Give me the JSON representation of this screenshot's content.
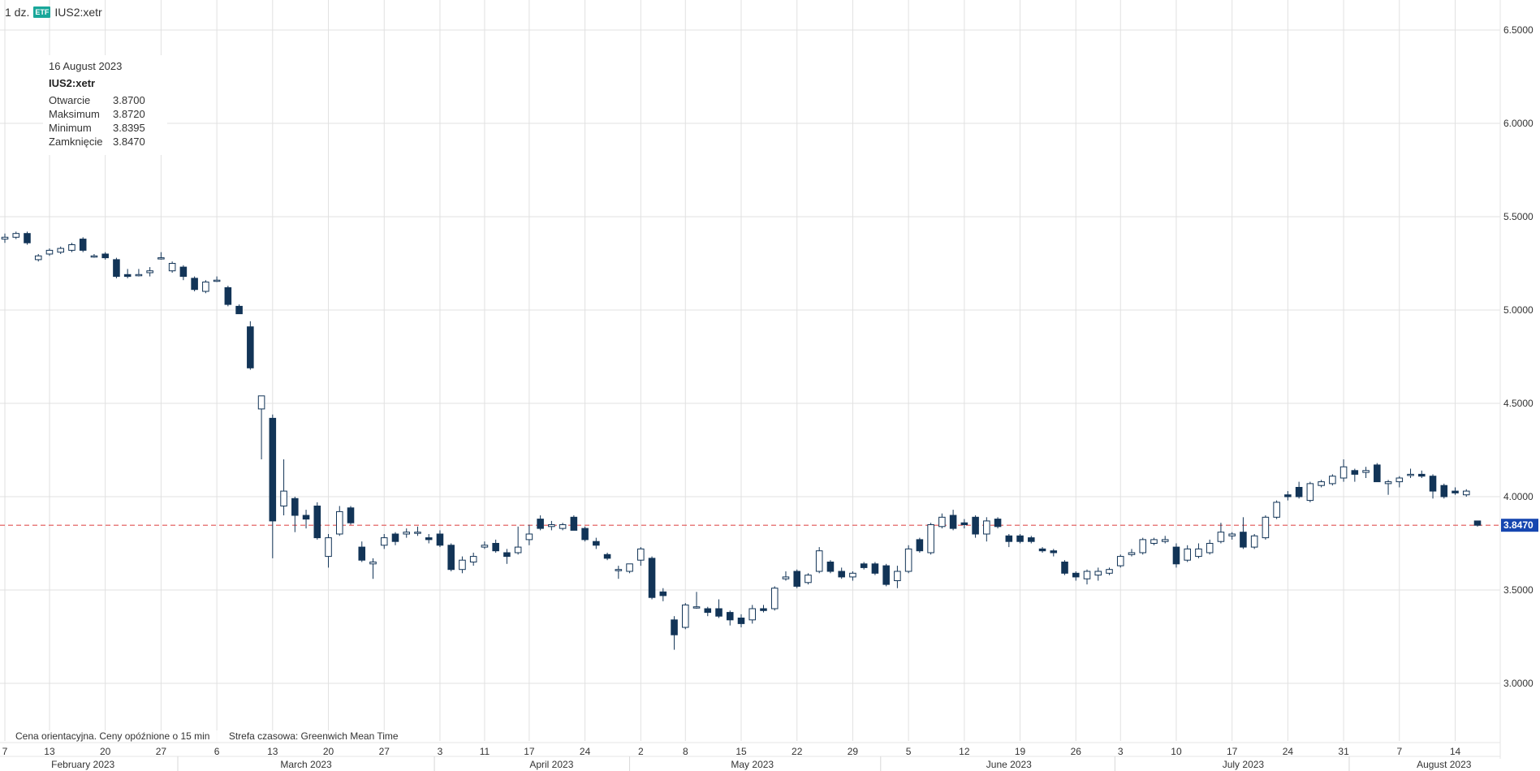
{
  "header": {
    "interval": "1 dz.",
    "badge": "ETF",
    "symbol": "IUS2:xetr"
  },
  "tooltip": {
    "date": "16 August 2023",
    "symbol": "IUS2:xetr",
    "rows": [
      {
        "label": "Otwarcie",
        "value": "3.8700"
      },
      {
        "label": "Maksimum",
        "value": "3.8720"
      },
      {
        "label": "Minimum",
        "value": "3.8395"
      },
      {
        "label": "Zamknięcie",
        "value": "3.8470"
      }
    ]
  },
  "footnote": {
    "delay": "Cena orientacyjna. Ceny opóźnione o 15 min",
    "timezone": "Strefa czasowa: Greenwich Mean Time"
  },
  "colors": {
    "down": "#123457",
    "up": "#ffffff",
    "outline": "#123457",
    "last_price_line": "#e05252",
    "last_price_label_bg": "#1646b0",
    "grid": "#e1e1e1"
  },
  "chart_data": {
    "type": "candlestick",
    "y_ticks": [
      "3.0000",
      "3.5000",
      "4.0000",
      "4.5000",
      "5.0000",
      "5.5000",
      "6.0000",
      "6.5000"
    ],
    "ylim": [
      2.8,
      6.65
    ],
    "last_price": "3.8470",
    "x_day_ticks": [
      {
        "label": "7",
        "date": "2023-02-07"
      },
      {
        "label": "13",
        "date": "2023-02-13"
      },
      {
        "label": "20",
        "date": "2023-02-20"
      },
      {
        "label": "27",
        "date": "2023-02-27"
      },
      {
        "label": "6",
        "date": "2023-03-06"
      },
      {
        "label": "13",
        "date": "2023-03-13"
      },
      {
        "label": "20",
        "date": "2023-03-20"
      },
      {
        "label": "27",
        "date": "2023-03-27"
      },
      {
        "label": "3",
        "date": "2023-04-03"
      },
      {
        "label": "11",
        "date": "2023-04-11"
      },
      {
        "label": "17",
        "date": "2023-04-17"
      },
      {
        "label": "24",
        "date": "2023-04-24"
      },
      {
        "label": "2",
        "date": "2023-05-02"
      },
      {
        "label": "8",
        "date": "2023-05-08"
      },
      {
        "label": "15",
        "date": "2023-05-15"
      },
      {
        "label": "22",
        "date": "2023-05-22"
      },
      {
        "label": "29",
        "date": "2023-05-29"
      },
      {
        "label": "5",
        "date": "2023-06-05"
      },
      {
        "label": "12",
        "date": "2023-06-12"
      },
      {
        "label": "19",
        "date": "2023-06-19"
      },
      {
        "label": "26",
        "date": "2023-06-26"
      },
      {
        "label": "3",
        "date": "2023-07-03"
      },
      {
        "label": "10",
        "date": "2023-07-10"
      },
      {
        "label": "17",
        "date": "2023-07-17"
      },
      {
        "label": "24",
        "date": "2023-07-24"
      },
      {
        "label": "31",
        "date": "2023-07-31"
      },
      {
        "label": "7",
        "date": "2023-08-07"
      },
      {
        "label": "14",
        "date": "2023-08-14"
      }
    ],
    "x_month_labels": [
      {
        "label": "February 2023",
        "date": "2023-02-16"
      },
      {
        "label": "March 2023",
        "date": "2023-03-16"
      },
      {
        "label": "April 2023",
        "date": "2023-04-19"
      },
      {
        "label": "May 2023",
        "date": "2023-05-16"
      },
      {
        "label": "June 2023",
        "date": "2023-06-16"
      },
      {
        "label": "July 2023",
        "date": "2023-07-18"
      },
      {
        "label": "August 2023",
        "date": "2023-08-11"
      }
    ],
    "month_separators": [
      "2023-03-01",
      "2023-04-03",
      "2023-05-01",
      "2023-06-01",
      "2023-07-03",
      "2023-08-01"
    ],
    "candles": [
      {
        "date": "2023-02-07",
        "o": 5.38,
        "h": 5.41,
        "l": 5.36,
        "c": 5.39
      },
      {
        "date": "2023-02-08",
        "o": 5.39,
        "h": 5.42,
        "l": 5.38,
        "c": 5.41
      },
      {
        "date": "2023-02-09",
        "o": 5.41,
        "h": 5.42,
        "l": 5.35,
        "c": 5.36
      },
      {
        "date": "2023-02-10",
        "o": 5.27,
        "h": 5.3,
        "l": 5.26,
        "c": 5.29
      },
      {
        "date": "2023-02-13",
        "o": 5.3,
        "h": 5.33,
        "l": 5.29,
        "c": 5.32
      },
      {
        "date": "2023-02-14",
        "o": 5.31,
        "h": 5.34,
        "l": 5.3,
        "c": 5.33
      },
      {
        "date": "2023-02-15",
        "o": 5.32,
        "h": 5.36,
        "l": 5.31,
        "c": 5.35
      },
      {
        "date": "2023-02-16",
        "o": 5.38,
        "h": 5.39,
        "l": 5.31,
        "c": 5.32
      },
      {
        "date": "2023-02-17",
        "o": 5.29,
        "h": 5.3,
        "l": 5.28,
        "c": 5.29
      },
      {
        "date": "2023-02-20",
        "o": 5.3,
        "h": 5.31,
        "l": 5.27,
        "c": 5.28
      },
      {
        "date": "2023-02-21",
        "o": 5.27,
        "h": 5.28,
        "l": 5.17,
        "c": 5.18
      },
      {
        "date": "2023-02-22",
        "o": 5.19,
        "h": 5.22,
        "l": 5.17,
        "c": 5.18
      },
      {
        "date": "2023-02-23",
        "o": 5.19,
        "h": 5.22,
        "l": 5.18,
        "c": 5.19
      },
      {
        "date": "2023-02-24",
        "o": 5.2,
        "h": 5.23,
        "l": 5.18,
        "c": 5.21
      },
      {
        "date": "2023-02-27",
        "o": 5.28,
        "h": 5.31,
        "l": 5.27,
        "c": 5.28
      },
      {
        "date": "2023-02-28",
        "o": 5.21,
        "h": 5.26,
        "l": 5.2,
        "c": 5.25
      },
      {
        "date": "2023-03-01",
        "o": 5.23,
        "h": 5.24,
        "l": 5.16,
        "c": 5.18
      },
      {
        "date": "2023-03-02",
        "o": 5.17,
        "h": 5.18,
        "l": 5.1,
        "c": 5.11
      },
      {
        "date": "2023-03-03",
        "o": 5.1,
        "h": 5.16,
        "l": 5.09,
        "c": 5.15
      },
      {
        "date": "2023-03-06",
        "o": 5.16,
        "h": 5.18,
        "l": 5.15,
        "c": 5.16
      },
      {
        "date": "2023-03-07",
        "o": 5.12,
        "h": 5.13,
        "l": 5.02,
        "c": 5.03
      },
      {
        "date": "2023-03-08",
        "o": 5.02,
        "h": 5.03,
        "l": 4.98,
        "c": 4.98
      },
      {
        "date": "2023-03-09",
        "o": 4.91,
        "h": 4.94,
        "l": 4.68,
        "c": 4.69
      },
      {
        "date": "2023-03-10",
        "o": 4.47,
        "h": 4.54,
        "l": 4.2,
        "c": 4.54
      },
      {
        "date": "2023-03-13",
        "o": 4.42,
        "h": 4.44,
        "l": 3.67,
        "c": 3.87
      },
      {
        "date": "2023-03-14",
        "o": 3.95,
        "h": 4.2,
        "l": 3.9,
        "c": 4.03
      },
      {
        "date": "2023-03-15",
        "o": 3.99,
        "h": 4.0,
        "l": 3.81,
        "c": 3.9
      },
      {
        "date": "2023-03-16",
        "o": 3.9,
        "h": 3.93,
        "l": 3.83,
        "c": 3.88
      },
      {
        "date": "2023-03-17",
        "o": 3.95,
        "h": 3.97,
        "l": 3.77,
        "c": 3.78
      },
      {
        "date": "2023-03-20",
        "o": 3.68,
        "h": 3.8,
        "l": 3.62,
        "c": 3.78
      },
      {
        "date": "2023-03-21",
        "o": 3.8,
        "h": 3.95,
        "l": 3.79,
        "c": 3.92
      },
      {
        "date": "2023-03-22",
        "o": 3.94,
        "h": 3.95,
        "l": 3.85,
        "c": 3.86
      },
      {
        "date": "2023-03-23",
        "o": 3.73,
        "h": 3.76,
        "l": 3.65,
        "c": 3.66
      },
      {
        "date": "2023-03-24",
        "o": 3.64,
        "h": 3.67,
        "l": 3.56,
        "c": 3.65
      },
      {
        "date": "2023-03-27",
        "o": 3.74,
        "h": 3.8,
        "l": 3.72,
        "c": 3.78
      },
      {
        "date": "2023-03-28",
        "o": 3.8,
        "h": 3.81,
        "l": 3.74,
        "c": 3.76
      },
      {
        "date": "2023-03-29",
        "o": 3.8,
        "h": 3.83,
        "l": 3.78,
        "c": 3.81
      },
      {
        "date": "2023-03-30",
        "o": 3.81,
        "h": 3.84,
        "l": 3.79,
        "c": 3.81
      },
      {
        "date": "2023-03-31",
        "o": 3.78,
        "h": 3.8,
        "l": 3.75,
        "c": 3.77
      },
      {
        "date": "2023-04-03",
        "o": 3.8,
        "h": 3.82,
        "l": 3.73,
        "c": 3.74
      },
      {
        "date": "2023-04-04",
        "o": 3.74,
        "h": 3.75,
        "l": 3.6,
        "c": 3.61
      },
      {
        "date": "2023-04-05",
        "o": 3.61,
        "h": 3.68,
        "l": 3.59,
        "c": 3.66
      },
      {
        "date": "2023-04-06",
        "o": 3.65,
        "h": 3.7,
        "l": 3.63,
        "c": 3.68
      },
      {
        "date": "2023-04-11",
        "o": 3.73,
        "h": 3.76,
        "l": 3.72,
        "c": 3.74
      },
      {
        "date": "2023-04-12",
        "o": 3.75,
        "h": 3.77,
        "l": 3.7,
        "c": 3.71
      },
      {
        "date": "2023-04-13",
        "o": 3.7,
        "h": 3.72,
        "l": 3.64,
        "c": 3.68
      },
      {
        "date": "2023-04-14",
        "o": 3.7,
        "h": 3.84,
        "l": 3.69,
        "c": 3.73
      },
      {
        "date": "2023-04-17",
        "o": 3.77,
        "h": 3.85,
        "l": 3.74,
        "c": 3.8
      },
      {
        "date": "2023-04-18",
        "o": 3.88,
        "h": 3.9,
        "l": 3.82,
        "c": 3.83
      },
      {
        "date": "2023-04-19",
        "o": 3.84,
        "h": 3.87,
        "l": 3.82,
        "c": 3.85
      },
      {
        "date": "2023-04-20",
        "o": 3.83,
        "h": 3.86,
        "l": 3.82,
        "c": 3.85
      },
      {
        "date": "2023-04-21",
        "o": 3.89,
        "h": 3.9,
        "l": 3.82,
        "c": 3.82
      },
      {
        "date": "2023-04-24",
        "o": 3.83,
        "h": 3.84,
        "l": 3.76,
        "c": 3.77
      },
      {
        "date": "2023-04-25",
        "o": 3.76,
        "h": 3.78,
        "l": 3.72,
        "c": 3.74
      },
      {
        "date": "2023-04-26",
        "o": 3.69,
        "h": 3.7,
        "l": 3.66,
        "c": 3.67
      },
      {
        "date": "2023-04-27",
        "o": 3.61,
        "h": 3.63,
        "l": 3.56,
        "c": 3.61
      },
      {
        "date": "2023-04-28",
        "o": 3.6,
        "h": 3.64,
        "l": 3.59,
        "c": 3.64
      },
      {
        "date": "2023-05-02",
        "o": 3.66,
        "h": 3.73,
        "l": 3.63,
        "c": 3.72
      },
      {
        "date": "2023-05-03",
        "o": 3.67,
        "h": 3.68,
        "l": 3.45,
        "c": 3.46
      },
      {
        "date": "2023-05-04",
        "o": 3.49,
        "h": 3.51,
        "l": 3.44,
        "c": 3.47
      },
      {
        "date": "2023-05-05",
        "o": 3.34,
        "h": 3.36,
        "l": 3.18,
        "c": 3.26
      },
      {
        "date": "2023-05-08",
        "o": 3.3,
        "h": 3.43,
        "l": 3.29,
        "c": 3.42
      },
      {
        "date": "2023-05-09",
        "o": 3.41,
        "h": 3.49,
        "l": 3.4,
        "c": 3.41
      },
      {
        "date": "2023-05-10",
        "o": 3.4,
        "h": 3.41,
        "l": 3.36,
        "c": 3.38
      },
      {
        "date": "2023-05-11",
        "o": 3.4,
        "h": 3.45,
        "l": 3.35,
        "c": 3.36
      },
      {
        "date": "2023-05-12",
        "o": 3.38,
        "h": 3.39,
        "l": 3.31,
        "c": 3.34
      },
      {
        "date": "2023-05-15",
        "o": 3.35,
        "h": 3.37,
        "l": 3.3,
        "c": 3.32
      },
      {
        "date": "2023-05-16",
        "o": 3.34,
        "h": 3.42,
        "l": 3.32,
        "c": 3.4
      },
      {
        "date": "2023-05-17",
        "o": 3.4,
        "h": 3.42,
        "l": 3.38,
        "c": 3.39
      },
      {
        "date": "2023-05-18",
        "o": 3.4,
        "h": 3.52,
        "l": 3.39,
        "c": 3.51
      },
      {
        "date": "2023-05-19",
        "o": 3.56,
        "h": 3.6,
        "l": 3.55,
        "c": 3.57
      },
      {
        "date": "2023-05-22",
        "o": 3.6,
        "h": 3.61,
        "l": 3.51,
        "c": 3.52
      },
      {
        "date": "2023-05-23",
        "o": 3.54,
        "h": 3.59,
        "l": 3.53,
        "c": 3.58
      },
      {
        "date": "2023-05-24",
        "o": 3.6,
        "h": 3.73,
        "l": 3.59,
        "c": 3.71
      },
      {
        "date": "2023-05-25",
        "o": 3.65,
        "h": 3.66,
        "l": 3.59,
        "c": 3.6
      },
      {
        "date": "2023-05-26",
        "o": 3.6,
        "h": 3.62,
        "l": 3.56,
        "c": 3.57
      },
      {
        "date": "2023-05-29",
        "o": 3.57,
        "h": 3.6,
        "l": 3.55,
        "c": 3.59
      },
      {
        "date": "2023-05-30",
        "o": 3.64,
        "h": 3.65,
        "l": 3.61,
        "c": 3.62
      },
      {
        "date": "2023-05-31",
        "o": 3.64,
        "h": 3.65,
        "l": 3.58,
        "c": 3.59
      },
      {
        "date": "2023-06-01",
        "o": 3.63,
        "h": 3.64,
        "l": 3.52,
        "c": 3.53
      },
      {
        "date": "2023-06-02",
        "o": 3.55,
        "h": 3.63,
        "l": 3.51,
        "c": 3.6
      },
      {
        "date": "2023-06-05",
        "o": 3.6,
        "h": 3.74,
        "l": 3.59,
        "c": 3.72
      },
      {
        "date": "2023-06-06",
        "o": 3.77,
        "h": 3.78,
        "l": 3.7,
        "c": 3.71
      },
      {
        "date": "2023-06-07",
        "o": 3.7,
        "h": 3.86,
        "l": 3.69,
        "c": 3.85
      },
      {
        "date": "2023-06-08",
        "o": 3.84,
        "h": 3.91,
        "l": 3.83,
        "c": 3.89
      },
      {
        "date": "2023-06-09",
        "o": 3.9,
        "h": 3.93,
        "l": 3.82,
        "c": 3.83
      },
      {
        "date": "2023-06-12",
        "o": 3.86,
        "h": 3.88,
        "l": 3.83,
        "c": 3.85
      },
      {
        "date": "2023-06-13",
        "o": 3.89,
        "h": 3.9,
        "l": 3.78,
        "c": 3.8
      },
      {
        "date": "2023-06-14",
        "o": 3.8,
        "h": 3.89,
        "l": 3.76,
        "c": 3.87
      },
      {
        "date": "2023-06-15",
        "o": 3.88,
        "h": 3.89,
        "l": 3.83,
        "c": 3.84
      },
      {
        "date": "2023-06-16",
        "o": 3.79,
        "h": 3.8,
        "l": 3.73,
        "c": 3.76
      },
      {
        "date": "2023-06-19",
        "o": 3.79,
        "h": 3.8,
        "l": 3.75,
        "c": 3.76
      },
      {
        "date": "2023-06-20",
        "o": 3.78,
        "h": 3.79,
        "l": 3.75,
        "c": 3.76
      },
      {
        "date": "2023-06-21",
        "o": 3.72,
        "h": 3.73,
        "l": 3.7,
        "c": 3.71
      },
      {
        "date": "2023-06-22",
        "o": 3.71,
        "h": 3.72,
        "l": 3.68,
        "c": 3.7
      },
      {
        "date": "2023-06-23",
        "o": 3.65,
        "h": 3.66,
        "l": 3.58,
        "c": 3.59
      },
      {
        "date": "2023-06-26",
        "o": 3.59,
        "h": 3.6,
        "l": 3.55,
        "c": 3.57
      },
      {
        "date": "2023-06-27",
        "o": 3.56,
        "h": 3.61,
        "l": 3.53,
        "c": 3.6
      },
      {
        "date": "2023-06-28",
        "o": 3.58,
        "h": 3.62,
        "l": 3.55,
        "c": 3.6
      },
      {
        "date": "2023-06-29",
        "o": 3.59,
        "h": 3.62,
        "l": 3.58,
        "c": 3.61
      },
      {
        "date": "2023-07-03",
        "o": 3.63,
        "h": 3.69,
        "l": 3.62,
        "c": 3.68
      },
      {
        "date": "2023-07-04",
        "o": 3.69,
        "h": 3.72,
        "l": 3.68,
        "c": 3.7
      },
      {
        "date": "2023-07-05",
        "o": 3.7,
        "h": 3.78,
        "l": 3.69,
        "c": 3.77
      },
      {
        "date": "2023-07-06",
        "o": 3.75,
        "h": 3.78,
        "l": 3.74,
        "c": 3.77
      },
      {
        "date": "2023-07-07",
        "o": 3.76,
        "h": 3.79,
        "l": 3.75,
        "c": 3.77
      },
      {
        "date": "2023-07-10",
        "o": 3.73,
        "h": 3.75,
        "l": 3.62,
        "c": 3.64
      },
      {
        "date": "2023-07-11",
        "o": 3.66,
        "h": 3.74,
        "l": 3.65,
        "c": 3.72
      },
      {
        "date": "2023-07-12",
        "o": 3.68,
        "h": 3.75,
        "l": 3.67,
        "c": 3.72
      },
      {
        "date": "2023-07-13",
        "o": 3.7,
        "h": 3.77,
        "l": 3.69,
        "c": 3.75
      },
      {
        "date": "2023-07-14",
        "o": 3.76,
        "h": 3.86,
        "l": 3.75,
        "c": 3.81
      },
      {
        "date": "2023-07-17",
        "o": 3.79,
        "h": 3.81,
        "l": 3.77,
        "c": 3.8
      },
      {
        "date": "2023-07-18",
        "o": 3.81,
        "h": 3.89,
        "l": 3.72,
        "c": 3.73
      },
      {
        "date": "2023-07-19",
        "o": 3.73,
        "h": 3.8,
        "l": 3.72,
        "c": 3.79
      },
      {
        "date": "2023-07-20",
        "o": 3.78,
        "h": 3.9,
        "l": 3.77,
        "c": 3.89
      },
      {
        "date": "2023-07-21",
        "o": 3.89,
        "h": 3.98,
        "l": 3.88,
        "c": 3.97
      },
      {
        "date": "2023-07-24",
        "o": 4.01,
        "h": 4.03,
        "l": 3.98,
        "c": 4.0
      },
      {
        "date": "2023-07-25",
        "o": 4.05,
        "h": 4.08,
        "l": 3.99,
        "c": 4.0
      },
      {
        "date": "2023-07-26",
        "o": 3.98,
        "h": 4.08,
        "l": 3.97,
        "c": 4.07
      },
      {
        "date": "2023-07-27",
        "o": 4.06,
        "h": 4.09,
        "l": 4.05,
        "c": 4.08
      },
      {
        "date": "2023-07-28",
        "o": 4.07,
        "h": 4.12,
        "l": 4.06,
        "c": 4.11
      },
      {
        "date": "2023-07-31",
        "o": 4.1,
        "h": 4.2,
        "l": 4.08,
        "c": 4.16
      },
      {
        "date": "2023-08-01",
        "o": 4.14,
        "h": 4.15,
        "l": 4.08,
        "c": 4.12
      },
      {
        "date": "2023-08-02",
        "o": 4.13,
        "h": 4.16,
        "l": 4.1,
        "c": 4.14
      },
      {
        "date": "2023-08-03",
        "o": 4.17,
        "h": 4.18,
        "l": 4.08,
        "c": 4.08
      },
      {
        "date": "2023-08-04",
        "o": 4.07,
        "h": 4.09,
        "l": 4.01,
        "c": 4.08
      },
      {
        "date": "2023-08-07",
        "o": 4.08,
        "h": 4.11,
        "l": 4.05,
        "c": 4.1
      },
      {
        "date": "2023-08-08",
        "o": 4.12,
        "h": 4.15,
        "l": 4.1,
        "c": 4.12
      },
      {
        "date": "2023-08-09",
        "o": 4.12,
        "h": 4.14,
        "l": 4.1,
        "c": 4.11
      },
      {
        "date": "2023-08-10",
        "o": 4.11,
        "h": 4.12,
        "l": 3.99,
        "c": 4.03
      },
      {
        "date": "2023-08-11",
        "o": 4.06,
        "h": 4.07,
        "l": 3.99,
        "c": 4.0
      },
      {
        "date": "2023-08-14",
        "o": 4.03,
        "h": 4.05,
        "l": 4.01,
        "c": 4.02
      },
      {
        "date": "2023-08-15",
        "o": 4.01,
        "h": 4.04,
        "l": 4.0,
        "c": 4.03
      },
      {
        "date": "2023-08-16",
        "o": 3.87,
        "h": 3.872,
        "l": 3.8395,
        "c": 3.847
      }
    ]
  }
}
